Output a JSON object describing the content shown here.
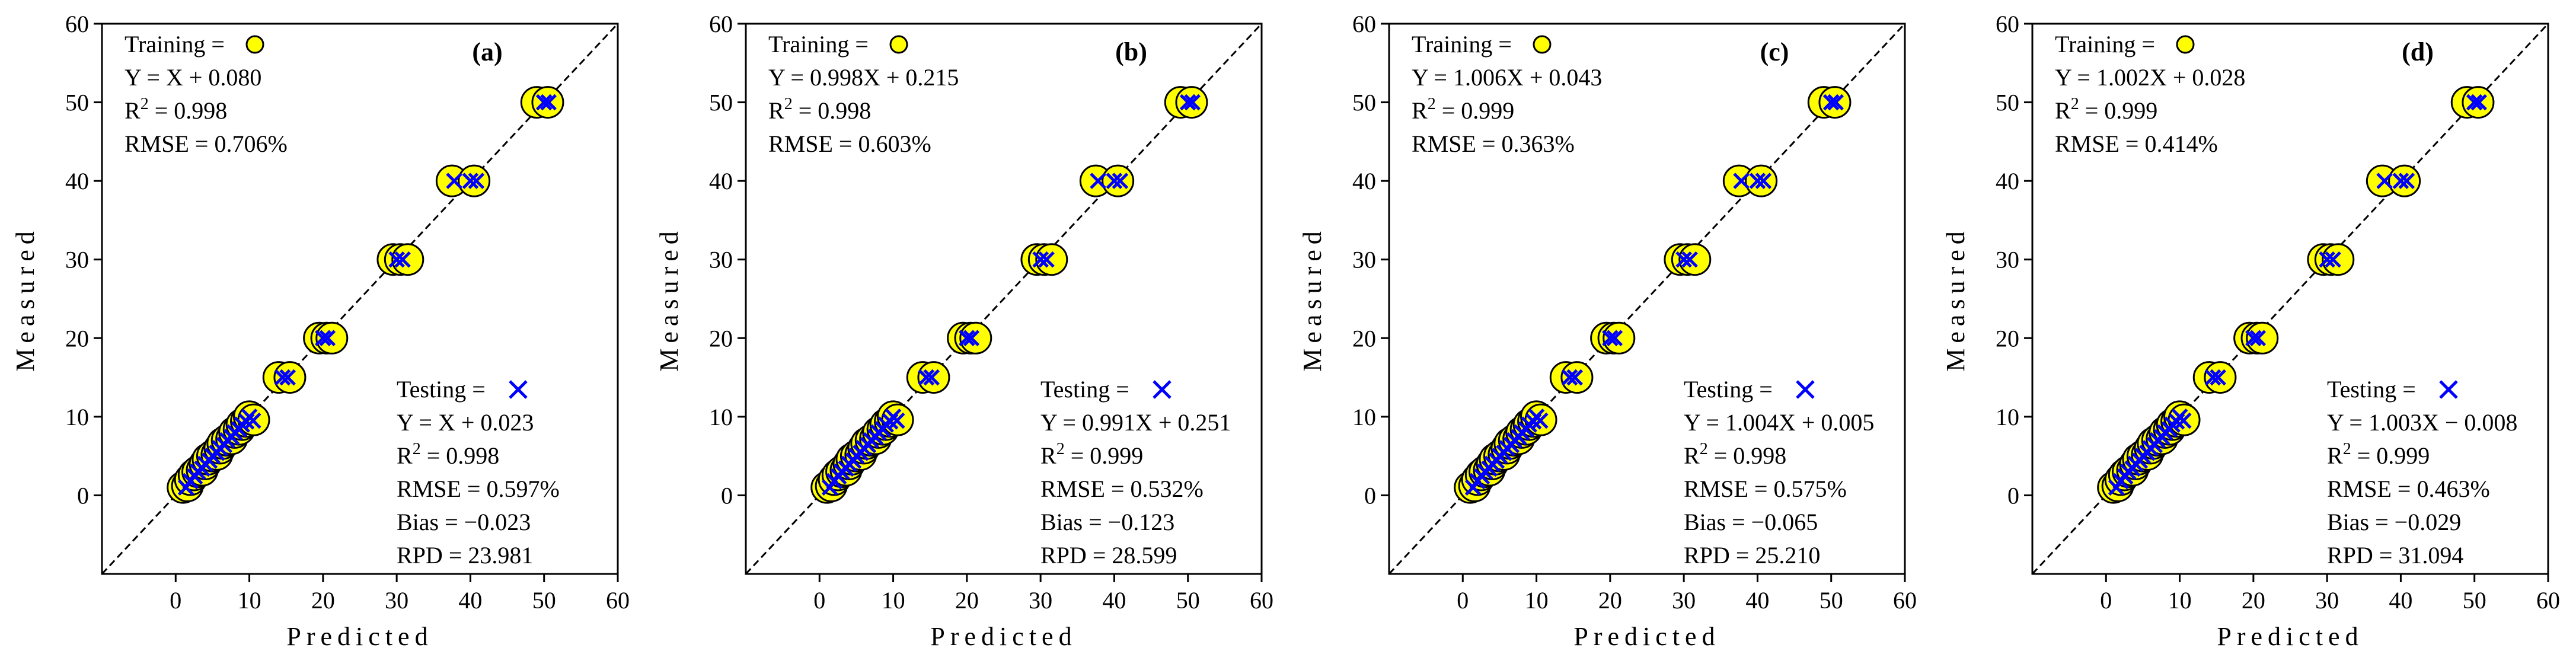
{
  "colors": {
    "training_fill": "#ffff00",
    "training_edge": "#000000",
    "testing_marker": "#0000ff",
    "identity_line": "#000000"
  },
  "chart_data": [
    {
      "type": "scatter",
      "panel_label": "(a)",
      "xlabel": "Predicted",
      "ylabel": "Measured",
      "xlim": [
        -10,
        60
      ],
      "ylim": [
        -10,
        60
      ],
      "xticks": [
        0,
        10,
        20,
        30,
        40,
        50,
        60
      ],
      "yticks": [
        0,
        10,
        20,
        30,
        40,
        50,
        60
      ],
      "identity_line": true,
      "training": {
        "legend": "Training =",
        "equation": "Y = X + 0.080",
        "r2": "= 0.998",
        "rmse": "RMSE = 0.706%",
        "points": [
          [
            1,
            1
          ],
          [
            1.6,
            1.2
          ],
          [
            2,
            2
          ],
          [
            2.5,
            2.6
          ],
          [
            3,
            3
          ],
          [
            3.6,
            3.2
          ],
          [
            4,
            4
          ],
          [
            4.4,
            4.6
          ],
          [
            5,
            5
          ],
          [
            5.6,
            5.2
          ],
          [
            6,
            6
          ],
          [
            6.4,
            6.6
          ],
          [
            7,
            7
          ],
          [
            7.6,
            7.2
          ],
          [
            8,
            8
          ],
          [
            8.6,
            8.4
          ],
          [
            9,
            9
          ],
          [
            9.6,
            9.4
          ],
          [
            10,
            10
          ],
          [
            10.6,
            9.6
          ],
          [
            14,
            15
          ],
          [
            15.5,
            15
          ],
          [
            19.5,
            20
          ],
          [
            20.5,
            20
          ],
          [
            21.2,
            20
          ],
          [
            29.5,
            30
          ],
          [
            30.5,
            30
          ],
          [
            31.5,
            30
          ],
          [
            37.5,
            40
          ],
          [
            40.5,
            40
          ],
          [
            49,
            50
          ],
          [
            50.5,
            50
          ]
        ]
      },
      "testing": {
        "legend": "Testing =",
        "equation": "Y = X + 0.023",
        "r2": "= 0.998",
        "rmse": "RMSE = 0.597%",
        "bias": "Bias = −0.023",
        "rpd": "RPD = 23.981",
        "points": [
          [
            1.4,
            1
          ],
          [
            2,
            1.8
          ],
          [
            2.6,
            2.4
          ],
          [
            3,
            3
          ],
          [
            3.6,
            3.4
          ],
          [
            4,
            4
          ],
          [
            4.6,
            4.4
          ],
          [
            5,
            5
          ],
          [
            5.6,
            5.4
          ],
          [
            6,
            6
          ],
          [
            6.6,
            6.4
          ],
          [
            7,
            7
          ],
          [
            7.6,
            7.4
          ],
          [
            8,
            8
          ],
          [
            8.6,
            8.4
          ],
          [
            9,
            9
          ],
          [
            9.6,
            9.4
          ],
          [
            10,
            10
          ],
          [
            10.5,
            9.5
          ],
          [
            14.5,
            15
          ],
          [
            15.2,
            15
          ],
          [
            20,
            20
          ],
          [
            20.6,
            20
          ],
          [
            30,
            30
          ],
          [
            30.8,
            30
          ],
          [
            37.8,
            40
          ],
          [
            40,
            40
          ],
          [
            40.8,
            40
          ],
          [
            50,
            50
          ],
          [
            50.6,
            50
          ]
        ]
      }
    },
    {
      "type": "scatter",
      "panel_label": "(b)",
      "xlabel": "Predicted",
      "ylabel": "Measured",
      "xlim": [
        -10,
        60
      ],
      "ylim": [
        -10,
        60
      ],
      "xticks": [
        0,
        10,
        20,
        30,
        40,
        50,
        60
      ],
      "yticks": [
        0,
        10,
        20,
        30,
        40,
        50,
        60
      ],
      "identity_line": true,
      "training": {
        "legend": "Training =",
        "equation": "Y = 0.998X + 0.215",
        "r2": "= 0.998",
        "rmse": "RMSE = 0.603%",
        "points": [
          [
            1,
            1
          ],
          [
            1.6,
            1.2
          ],
          [
            2,
            2
          ],
          [
            2.5,
            2.6
          ],
          [
            3,
            3
          ],
          [
            3.6,
            3.2
          ],
          [
            4,
            4
          ],
          [
            4.4,
            4.6
          ],
          [
            5,
            5
          ],
          [
            5.6,
            5.2
          ],
          [
            6,
            6
          ],
          [
            6.4,
            6.6
          ],
          [
            7,
            7
          ],
          [
            7.6,
            7.2
          ],
          [
            8,
            8
          ],
          [
            8.6,
            8.4
          ],
          [
            9,
            9
          ],
          [
            9.6,
            9.4
          ],
          [
            10,
            10
          ],
          [
            10.6,
            9.6
          ],
          [
            14,
            15
          ],
          [
            15.5,
            15
          ],
          [
            19.5,
            20
          ],
          [
            20.5,
            20
          ],
          [
            21.2,
            20
          ],
          [
            29.5,
            30
          ],
          [
            30.5,
            30
          ],
          [
            31.5,
            30
          ],
          [
            37.5,
            40
          ],
          [
            40.5,
            40
          ],
          [
            49,
            50
          ],
          [
            50.5,
            50
          ]
        ]
      },
      "testing": {
        "legend": "Testing =",
        "equation": "Y = 0.991X + 0.251",
        "r2": "= 0.999",
        "rmse": "RMSE = 0.532%",
        "bias": "Bias = −0.123",
        "rpd": "RPD = 28.599",
        "points": [
          [
            1.4,
            1
          ],
          [
            2,
            1.8
          ],
          [
            2.6,
            2.4
          ],
          [
            3,
            3
          ],
          [
            3.6,
            3.4
          ],
          [
            4,
            4
          ],
          [
            4.6,
            4.4
          ],
          [
            5,
            5
          ],
          [
            5.6,
            5.4
          ],
          [
            6,
            6
          ],
          [
            6.6,
            6.4
          ],
          [
            7,
            7
          ],
          [
            7.6,
            7.4
          ],
          [
            8,
            8
          ],
          [
            8.6,
            8.4
          ],
          [
            9,
            9
          ],
          [
            9.6,
            9.4
          ],
          [
            10,
            10
          ],
          [
            10.5,
            9.5
          ],
          [
            14.5,
            15
          ],
          [
            15.2,
            15
          ],
          [
            20,
            20
          ],
          [
            20.6,
            20
          ],
          [
            30,
            30
          ],
          [
            30.8,
            30
          ],
          [
            37.8,
            40
          ],
          [
            40,
            40
          ],
          [
            40.8,
            40
          ],
          [
            50,
            50
          ],
          [
            50.6,
            50
          ]
        ]
      }
    },
    {
      "type": "scatter",
      "panel_label": "(c)",
      "xlabel": "Predicted",
      "ylabel": "Measured",
      "xlim": [
        -10,
        60
      ],
      "ylim": [
        -10,
        60
      ],
      "xticks": [
        0,
        10,
        20,
        30,
        40,
        50,
        60
      ],
      "yticks": [
        0,
        10,
        20,
        30,
        40,
        50,
        60
      ],
      "identity_line": true,
      "training": {
        "legend": "Training =",
        "equation": "Y = 1.006X + 0.043",
        "r2": "= 0.999",
        "rmse": "RMSE = 0.363%",
        "points": [
          [
            1,
            1
          ],
          [
            1.6,
            1.2
          ],
          [
            2,
            2
          ],
          [
            2.5,
            2.6
          ],
          [
            3,
            3
          ],
          [
            3.6,
            3.2
          ],
          [
            4,
            4
          ],
          [
            4.4,
            4.6
          ],
          [
            5,
            5
          ],
          [
            5.6,
            5.2
          ],
          [
            6,
            6
          ],
          [
            6.4,
            6.6
          ],
          [
            7,
            7
          ],
          [
            7.6,
            7.2
          ],
          [
            8,
            8
          ],
          [
            8.6,
            8.4
          ],
          [
            9,
            9
          ],
          [
            9.6,
            9.4
          ],
          [
            10,
            10
          ],
          [
            10.6,
            9.6
          ],
          [
            14,
            15
          ],
          [
            15.5,
            15
          ],
          [
            19.5,
            20
          ],
          [
            20.5,
            20
          ],
          [
            21.2,
            20
          ],
          [
            29.5,
            30
          ],
          [
            30.5,
            30
          ],
          [
            31.5,
            30
          ],
          [
            37.5,
            40
          ],
          [
            40.5,
            40
          ],
          [
            49,
            50
          ],
          [
            50.5,
            50
          ]
        ]
      },
      "testing": {
        "legend": "Testing =",
        "equation": "Y = 1.004X + 0.005",
        "r2": "= 0.998",
        "rmse": "RMSE = 0.575%",
        "bias": "Bias = −0.065",
        "rpd": "RPD = 25.210",
        "points": [
          [
            1.4,
            1
          ],
          [
            2,
            1.8
          ],
          [
            2.6,
            2.4
          ],
          [
            3,
            3
          ],
          [
            3.6,
            3.4
          ],
          [
            4,
            4
          ],
          [
            4.6,
            4.4
          ],
          [
            5,
            5
          ],
          [
            5.6,
            5.4
          ],
          [
            6,
            6
          ],
          [
            6.6,
            6.4
          ],
          [
            7,
            7
          ],
          [
            7.6,
            7.4
          ],
          [
            8,
            8
          ],
          [
            8.6,
            8.4
          ],
          [
            9,
            9
          ],
          [
            9.6,
            9.4
          ],
          [
            10,
            10
          ],
          [
            10.5,
            9.5
          ],
          [
            14.5,
            15
          ],
          [
            15.2,
            15
          ],
          [
            20,
            20
          ],
          [
            20.6,
            20
          ],
          [
            30,
            30
          ],
          [
            30.8,
            30
          ],
          [
            37.8,
            40
          ],
          [
            40,
            40
          ],
          [
            40.8,
            40
          ],
          [
            50,
            50
          ],
          [
            50.6,
            50
          ]
        ]
      }
    },
    {
      "type": "scatter",
      "panel_label": "(d)",
      "xlabel": "Predicted",
      "ylabel": "Measured",
      "xlim": [
        -10,
        60
      ],
      "ylim": [
        -10,
        60
      ],
      "xticks": [
        0,
        10,
        20,
        30,
        40,
        50,
        60
      ],
      "yticks": [
        0,
        10,
        20,
        30,
        40,
        50,
        60
      ],
      "identity_line": true,
      "training": {
        "legend": "Training =",
        "equation": "Y = 1.002X + 0.028",
        "r2": "= 0.999",
        "rmse": "RMSE = 0.414%",
        "points": [
          [
            1,
            1
          ],
          [
            1.6,
            1.2
          ],
          [
            2,
            2
          ],
          [
            2.5,
            2.6
          ],
          [
            3,
            3
          ],
          [
            3.6,
            3.2
          ],
          [
            4,
            4
          ],
          [
            4.4,
            4.6
          ],
          [
            5,
            5
          ],
          [
            5.6,
            5.2
          ],
          [
            6,
            6
          ],
          [
            6.4,
            6.6
          ],
          [
            7,
            7
          ],
          [
            7.6,
            7.2
          ],
          [
            8,
            8
          ],
          [
            8.6,
            8.4
          ],
          [
            9,
            9
          ],
          [
            9.6,
            9.4
          ],
          [
            10,
            10
          ],
          [
            10.6,
            9.6
          ],
          [
            14,
            15
          ],
          [
            15.5,
            15
          ],
          [
            19.5,
            20
          ],
          [
            20.5,
            20
          ],
          [
            21.2,
            20
          ],
          [
            29.5,
            30
          ],
          [
            30.5,
            30
          ],
          [
            31.5,
            30
          ],
          [
            37.5,
            40
          ],
          [
            40.5,
            40
          ],
          [
            49,
            50
          ],
          [
            50.5,
            50
          ]
        ]
      },
      "testing": {
        "legend": "Testing =",
        "equation": "Y = 1.003X − 0.008",
        "r2": "= 0.999",
        "rmse": "RMSE = 0.463%",
        "bias": "Bias = −0.029",
        "rpd": "RPD = 31.094",
        "points": [
          [
            1.4,
            1
          ],
          [
            2,
            1.8
          ],
          [
            2.6,
            2.4
          ],
          [
            3,
            3
          ],
          [
            3.6,
            3.4
          ],
          [
            4,
            4
          ],
          [
            4.6,
            4.4
          ],
          [
            5,
            5
          ],
          [
            5.6,
            5.4
          ],
          [
            6,
            6
          ],
          [
            6.6,
            6.4
          ],
          [
            7,
            7
          ],
          [
            7.6,
            7.4
          ],
          [
            8,
            8
          ],
          [
            8.6,
            8.4
          ],
          [
            9,
            9
          ],
          [
            9.6,
            9.4
          ],
          [
            10,
            10
          ],
          [
            10.5,
            9.5
          ],
          [
            14.5,
            15
          ],
          [
            15.2,
            15
          ],
          [
            20,
            20
          ],
          [
            20.6,
            20
          ],
          [
            30,
            30
          ],
          [
            30.8,
            30
          ],
          [
            37.8,
            40
          ],
          [
            40,
            40
          ],
          [
            40.8,
            40
          ],
          [
            50,
            50
          ],
          [
            50.6,
            50
          ]
        ]
      }
    }
  ]
}
